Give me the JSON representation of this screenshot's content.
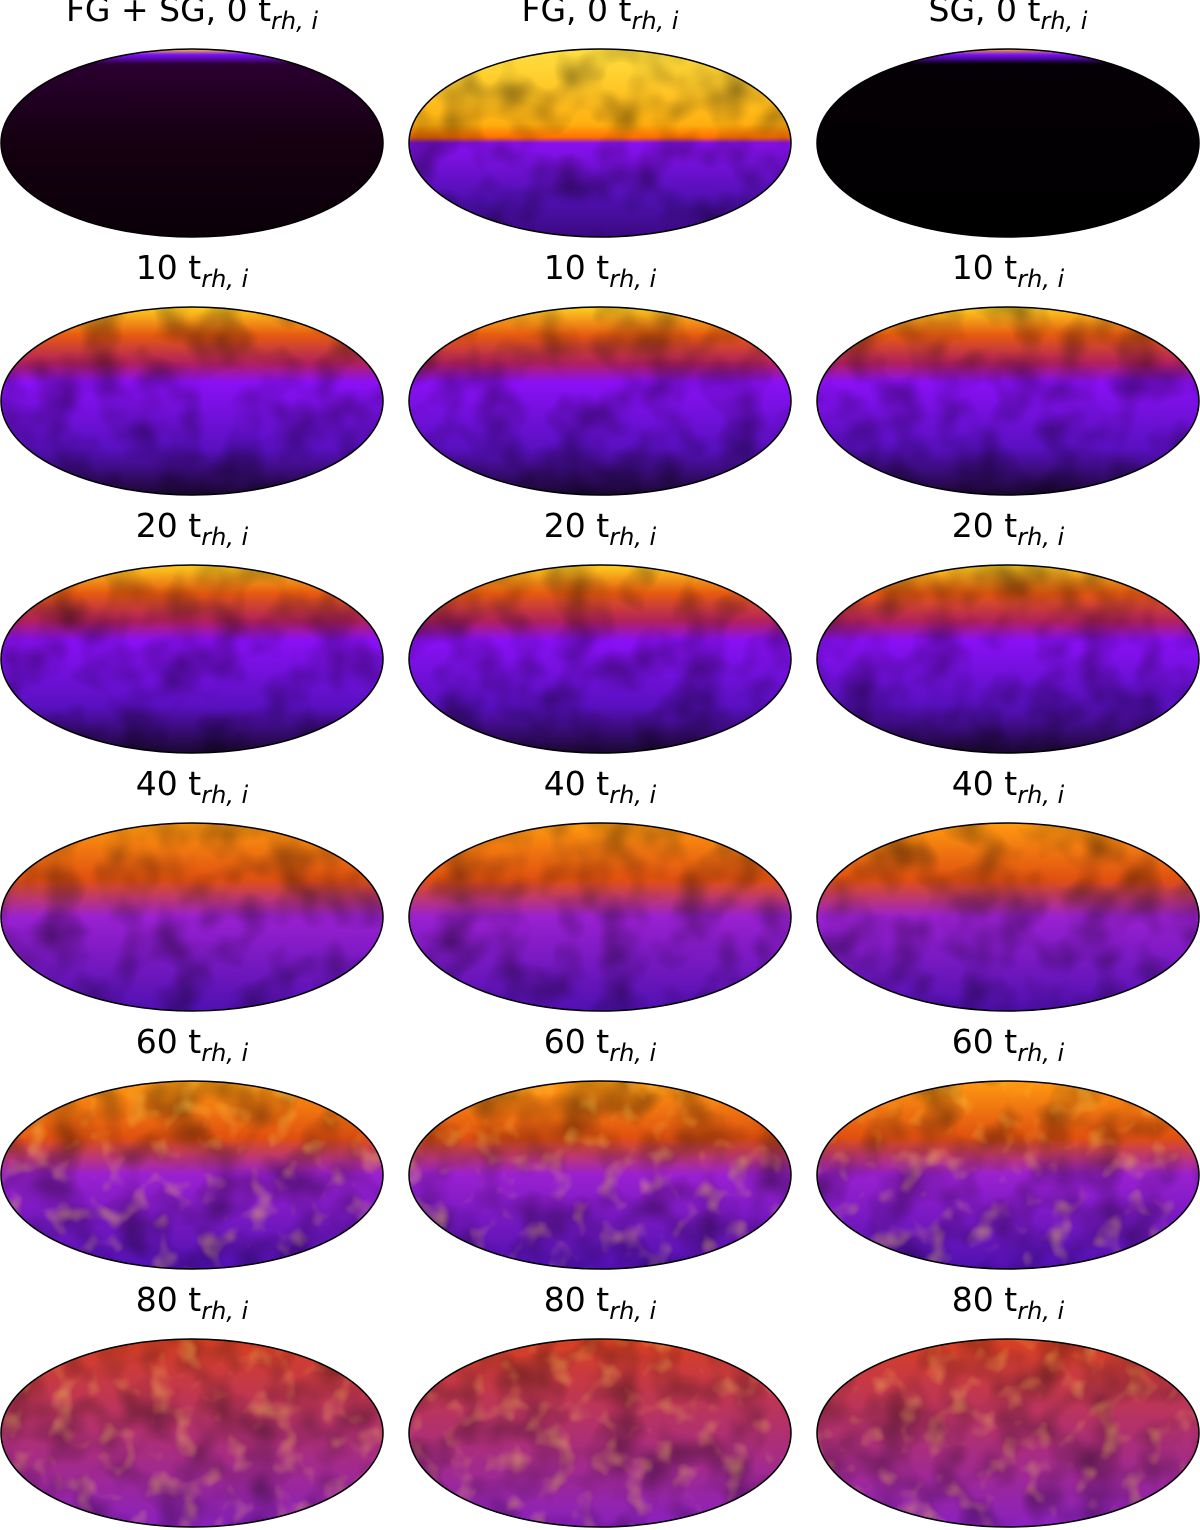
{
  "panels": [
    [
      {
        "title": "FG + SG, 0 t",
        "subscript": "rh, i"
      },
      {
        "title": "FG, 0 t",
        "subscript": "rh, i"
      },
      {
        "title": "SG, 0 t",
        "subscript": "rh, i"
      }
    ],
    [
      {
        "title": "10 t",
        "subscript": "rh, i"
      },
      {
        "title": "10 t",
        "subscript": "rh, i"
      },
      {
        "title": "10 t",
        "subscript": "rh, i"
      }
    ],
    [
      {
        "title": "20 t",
        "subscript": "rh, i"
      },
      {
        "title": "20 t",
        "subscript": "rh, i"
      },
      {
        "title": "20 t",
        "subscript": "rh, i"
      }
    ],
    [
      {
        "title": "40 t",
        "subscript": "rh, i"
      },
      {
        "title": "40 t",
        "subscript": "rh, i"
      },
      {
        "title": "40 t",
        "subscript": "rh, i"
      }
    ],
    [
      {
        "title": "60 t",
        "subscript": "rh, i"
      },
      {
        "title": "60 t",
        "subscript": "rh, i"
      },
      {
        "title": "60 t",
        "subscript": "rh, i"
      }
    ],
    [
      {
        "title": "80 t",
        "subscript": "rh, i"
      },
      {
        "title": "80 t",
        "subscript": "rh, i"
      },
      {
        "title": "80 t",
        "subscript": "rh, i"
      }
    ]
  ]
}
